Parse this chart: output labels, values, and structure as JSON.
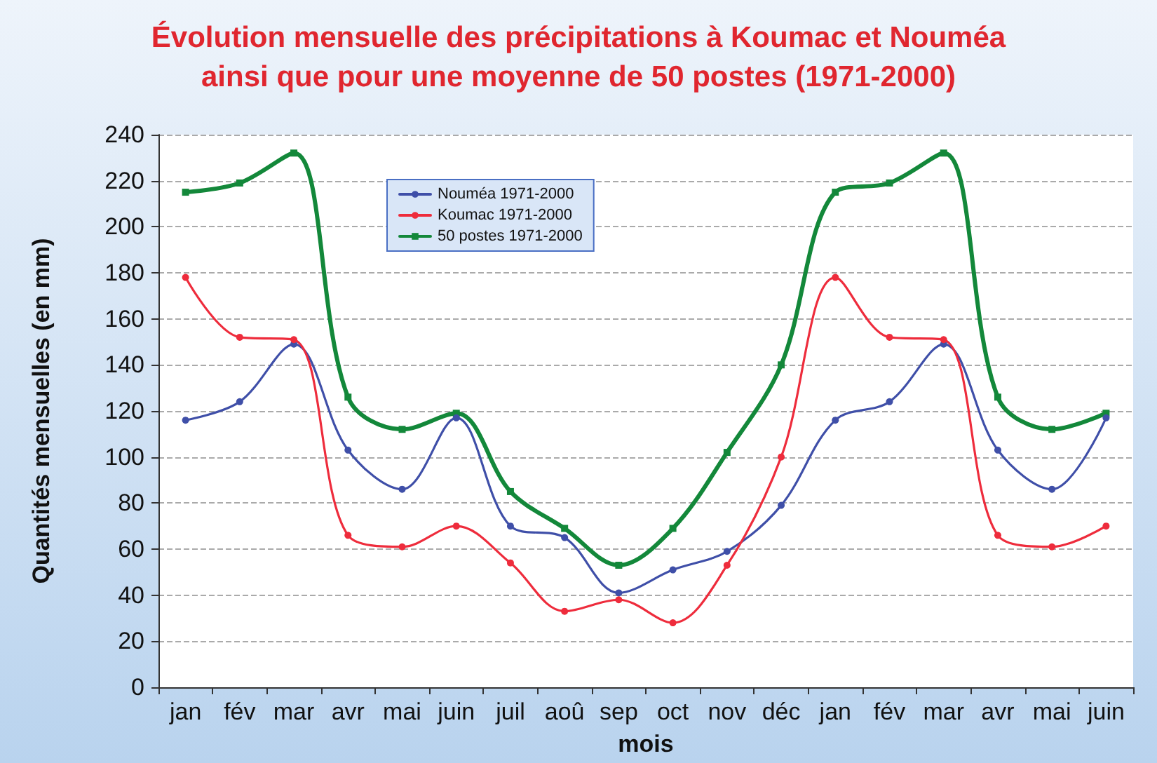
{
  "chart_data": {
    "type": "line",
    "title": "Évolution mensuelle des précipitations à Koumac et Nouméa\nainsi que pour une moyenne de 50 postes (1971-2000)",
    "xlabel": "mois",
    "ylabel": "Quantités mensuelles (en mm)",
    "categories": [
      "jan",
      "fév",
      "mar",
      "avr",
      "mai",
      "juin",
      "juil",
      "aoû",
      "sep",
      "oct",
      "nov",
      "déc",
      "jan",
      "fév",
      "mar",
      "avr",
      "mai",
      "juin"
    ],
    "series": [
      {
        "name": "Nouméa 1971-2000",
        "color": "#3f4fa8",
        "marker": "circle",
        "values": [
          116,
          124,
          149,
          103,
          86,
          117,
          70,
          65,
          41,
          51,
          59,
          79,
          116,
          124,
          149,
          103,
          86,
          117
        ]
      },
      {
        "name": "Koumac 1971-2000",
        "color": "#ee2c3c",
        "marker": "circle",
        "values": [
          178,
          152,
          151,
          66,
          61,
          70,
          54,
          33,
          38,
          28,
          53,
          100,
          178,
          152,
          151,
          66,
          61,
          70
        ]
      },
      {
        "name": "50 postes 1971-2000",
        "color": "#13883a",
        "marker": "square",
        "values": [
          215,
          219,
          232,
          126,
          112,
          119,
          85,
          69,
          53,
          69,
          102,
          140,
          215,
          219,
          232,
          126,
          112,
          119
        ]
      }
    ],
    "ylim": [
      0,
      240
    ],
    "yticks": [
      0,
      20,
      40,
      60,
      80,
      100,
      120,
      140,
      160,
      180,
      200,
      220,
      240
    ],
    "grid": "y",
    "legend": "top left",
    "line_style": "solid"
  }
}
